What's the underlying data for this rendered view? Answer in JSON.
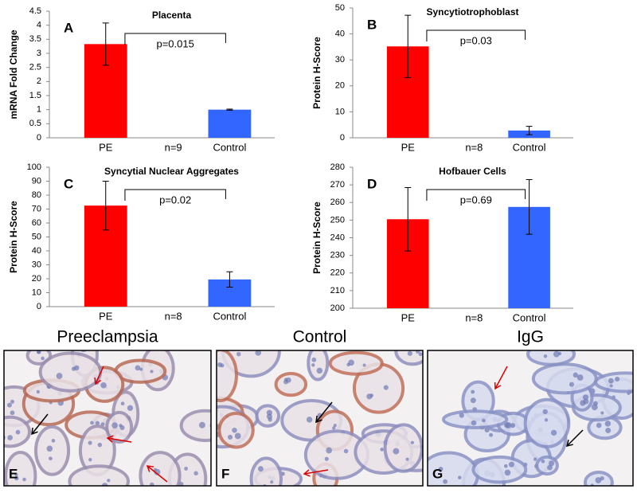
{
  "chart_data": [
    {
      "type": "bar",
      "panel": "A",
      "title": "Placenta",
      "ylabel": "mRNA Fold Change",
      "categories": [
        "PE",
        "Control"
      ],
      "values": [
        3.33,
        1.0
      ],
      "errors": [
        0.75,
        0.02
      ],
      "colors": [
        "#ff0000",
        "#3366ff"
      ],
      "n_label": "n=9",
      "p_label": "p=0.015",
      "ylim": [
        0,
        4.5
      ],
      "yticks": [
        0,
        0.5,
        1,
        1.5,
        2,
        2.5,
        3,
        3.5,
        4,
        4.5
      ]
    },
    {
      "type": "bar",
      "panel": "B",
      "title": "Syncytiotrophoblast",
      "ylabel": "Protein H-Score",
      "categories": [
        "PE",
        "Control"
      ],
      "values": [
        35.2,
        2.8
      ],
      "errors": [
        12,
        1.6
      ],
      "colors": [
        "#ff0000",
        "#3366ff"
      ],
      "n_label": "n=8",
      "p_label": "p=0.03",
      "ylim": [
        0,
        50
      ],
      "yticks": [
        0,
        10,
        20,
        30,
        40,
        50
      ]
    },
    {
      "type": "bar",
      "panel": "C",
      "title": "Syncytial Nuclear Aggregates",
      "ylabel": "Protein H-Score",
      "categories": [
        "PE",
        "Control"
      ],
      "values": [
        72.5,
        19.5
      ],
      "errors": [
        17.5,
        5.5
      ],
      "colors": [
        "#ff0000",
        "#3366ff"
      ],
      "n_label": "n=8",
      "p_label": "p=0.02",
      "ylim": [
        0,
        100
      ],
      "yticks": [
        0,
        10,
        20,
        30,
        40,
        50,
        60,
        70,
        80,
        90,
        100
      ]
    },
    {
      "type": "bar",
      "panel": "D",
      "title": "Hofbauer Cells",
      "ylabel": "Protein H-Score",
      "categories": [
        "PE",
        "Control"
      ],
      "values": [
        250.5,
        257.5
      ],
      "errors": [
        18,
        15.5
      ],
      "colors": [
        "#ff0000",
        "#3366ff"
      ],
      "n_label": "n=8",
      "p_label": "p=0.69",
      "ylim": [
        200,
        280
      ],
      "yticks": [
        200,
        210,
        220,
        230,
        240,
        250,
        260,
        270,
        280
      ]
    }
  ],
  "micrographs": [
    {
      "title": "Preeclampsia",
      "label": "E"
    },
    {
      "title": "Control",
      "label": "F"
    },
    {
      "title": "IgG",
      "label": "G"
    }
  ]
}
